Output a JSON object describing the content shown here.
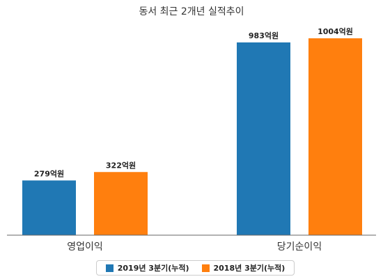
{
  "chart_data": {
    "type": "bar",
    "title": "동서 최근 2개년 실적추이",
    "categories": [
      "영업이익",
      "당기순이익"
    ],
    "series": [
      {
        "name": "2019년 3분기(누적)",
        "color": "#2078b4",
        "values": [
          279,
          983
        ],
        "labels": [
          "279억원",
          "983억원"
        ]
      },
      {
        "name": "2018년 3분기(누적)",
        "color": "#ff7f0e",
        "values": [
          322,
          1004
        ],
        "labels": [
          "322억원",
          "1004억원"
        ]
      }
    ],
    "xlabel": "",
    "ylabel": "",
    "ylim": [
      0,
      1100
    ],
    "grid": false,
    "legend_position": "bottom"
  }
}
